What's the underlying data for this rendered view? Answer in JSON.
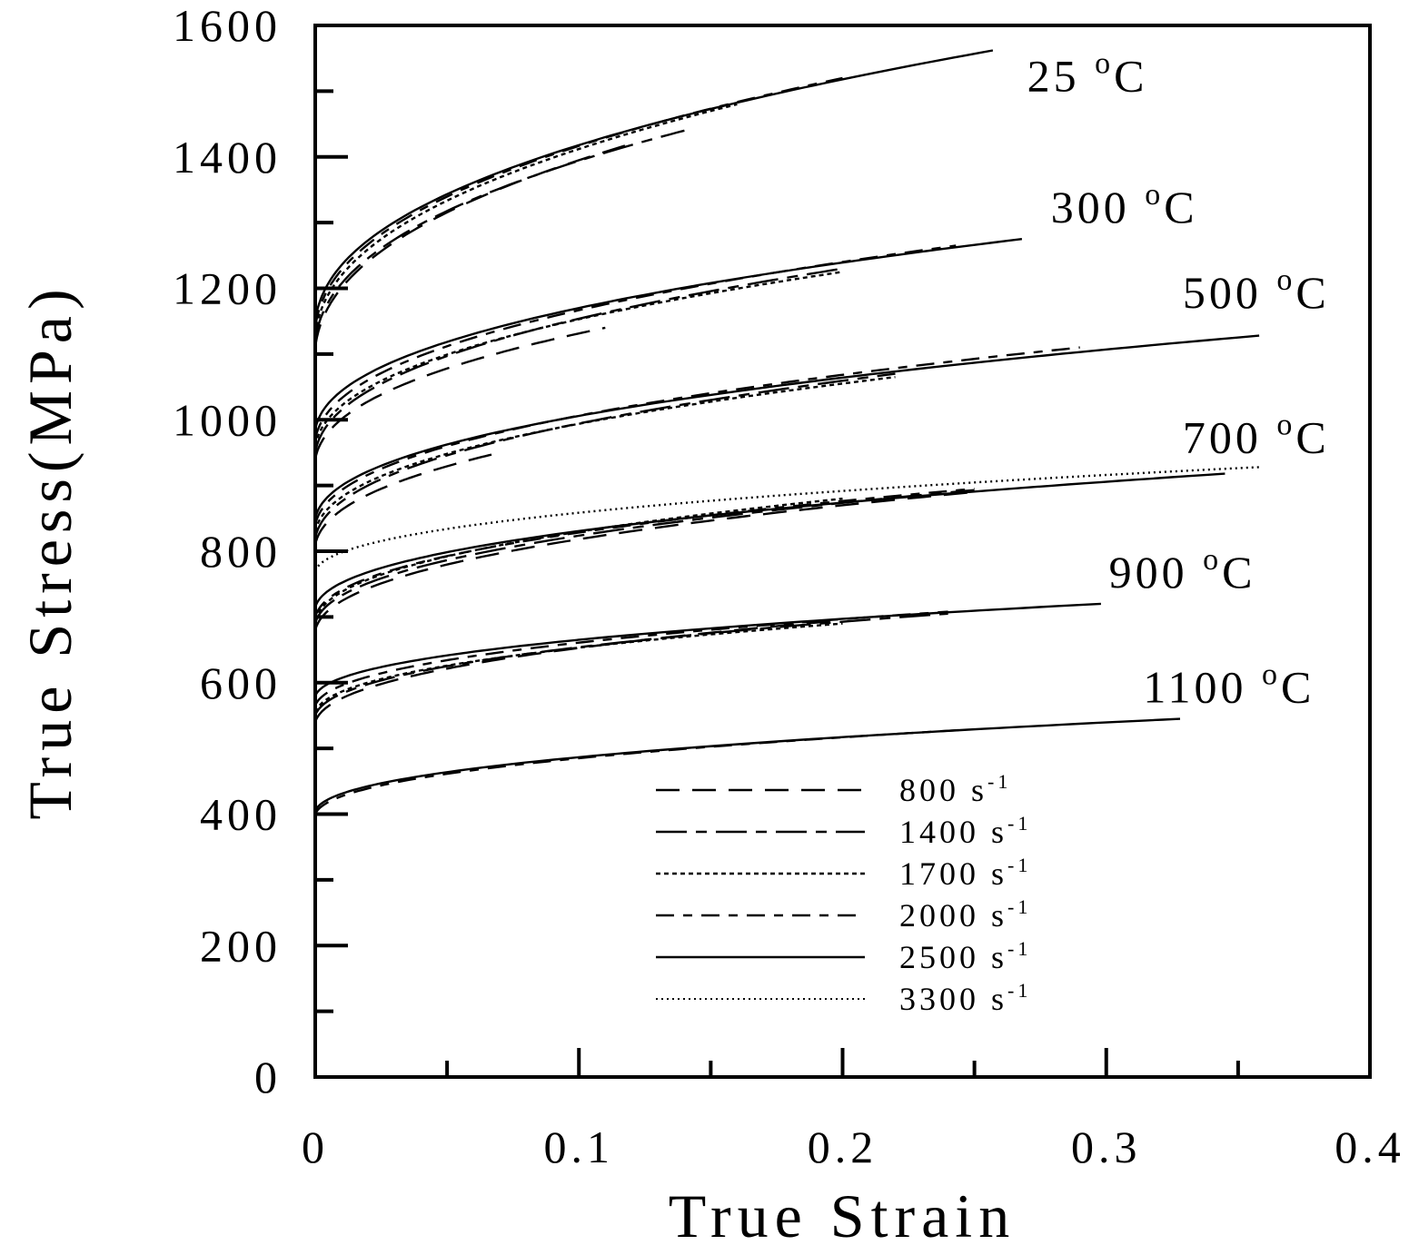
{
  "chart_data": {
    "type": "line",
    "title": "",
    "xlabel": "True Strain",
    "ylabel": "True Stress(MPa)",
    "xlim": [
      0,
      0.4
    ],
    "ylim": [
      0,
      1600
    ],
    "x_ticks_labeled": [
      "0",
      "0.1",
      "0.2",
      "0.3",
      "0.4"
    ],
    "x_tick_values": [
      0,
      0.1,
      0.2,
      0.3,
      0.4
    ],
    "x_minor_ticks": [
      0.05,
      0.15,
      0.25,
      0.35
    ],
    "y_ticks_labeled": [
      "0",
      "200",
      "400",
      "600",
      "800",
      "1000",
      "1200",
      "1400",
      "1600"
    ],
    "y_tick_values": [
      0,
      200,
      400,
      600,
      800,
      1000,
      1200,
      1400,
      1600
    ],
    "y_minor_ticks": [
      100,
      300,
      500,
      700,
      900,
      1100,
      1300,
      1500
    ],
    "grid": false,
    "legend_position": "bottom-center",
    "legend": [
      {
        "name": "800 s",
        "sup": "-1",
        "style": "long-dash"
      },
      {
        "name": "1400 s",
        "sup": "-1",
        "style": "long-dash-dot"
      },
      {
        "name": "1700 s",
        "sup": "-1",
        "style": "short-dash"
      },
      {
        "name": "2000 s",
        "sup": "-1",
        "style": "dash-dash"
      },
      {
        "name": "2500 s",
        "sup": "-1",
        "style": "solid"
      },
      {
        "name": "3300 s",
        "sup": "-1",
        "style": "dotted"
      }
    ],
    "temperatures": [
      {
        "label": "25",
        "unit": "C",
        "label_strain": 0.27,
        "label_stress": 1500,
        "series": [
          {
            "rate": "800 s-1",
            "s0": 1110,
            "end_strain": 0.12,
            "end_stress": 1420
          },
          {
            "rate": "1400 s-1",
            "s0": 1120,
            "end_strain": 0.14,
            "end_stress": 1440
          },
          {
            "rate": "1700 s-1",
            "s0": 1130,
            "end_strain": 0.16,
            "end_stress": 1480
          },
          {
            "rate": "2000 s-1",
            "s0": 1140,
            "end_strain": 0.2,
            "end_stress": 1520
          },
          {
            "rate": "2500 s-1",
            "s0": 1150,
            "end_strain": 0.257,
            "end_stress": 1562
          }
        ]
      },
      {
        "label": "300",
        "unit": "C",
        "label_strain": 0.279,
        "label_stress": 1300,
        "series": [
          {
            "rate": "800 s-1",
            "s0": 940,
            "end_strain": 0.11,
            "end_stress": 1140
          },
          {
            "rate": "1400 s-1",
            "s0": 950,
            "end_strain": 0.2,
            "end_stress": 1230
          },
          {
            "rate": "1700 s-1",
            "s0": 960,
            "end_strain": 0.2,
            "end_stress": 1225
          },
          {
            "rate": "2000 s-1",
            "s0": 970,
            "end_strain": 0.243,
            "end_stress": 1265
          },
          {
            "rate": "2500 s-1",
            "s0": 985,
            "end_strain": 0.268,
            "end_stress": 1275
          }
        ]
      },
      {
        "label": "500",
        "unit": "C",
        "label_strain": 0.329,
        "label_stress": 1170,
        "series": [
          {
            "rate": "800 s-1",
            "s0": 810,
            "end_strain": 0.07,
            "end_stress": 950
          },
          {
            "rate": "1400 s-1",
            "s0": 820,
            "end_strain": 0.22,
            "end_stress": 1070
          },
          {
            "rate": "1700 s-1",
            "s0": 830,
            "end_strain": 0.22,
            "end_stress": 1065
          },
          {
            "rate": "2000 s-1",
            "s0": 840,
            "end_strain": 0.29,
            "end_stress": 1110
          },
          {
            "rate": "2500 s-1",
            "s0": 850,
            "end_strain": 0.358,
            "end_stress": 1128
          }
        ]
      },
      {
        "label": "700",
        "unit": "C",
        "label_strain": 0.329,
        "label_stress": 950,
        "series": [
          {
            "rate": "800 s-1",
            "s0": 680,
            "end_strain": 0.25,
            "end_stress": 890
          },
          {
            "rate": "1400 s-1",
            "s0": 690,
            "end_strain": 0.25,
            "end_stress": 893
          },
          {
            "rate": "1700 s-1",
            "s0": 695,
            "end_strain": 0.2,
            "end_stress": 880
          },
          {
            "rate": "2000 s-1",
            "s0": 700,
            "end_strain": 0.25,
            "end_stress": 895
          },
          {
            "rate": "2500 s-1",
            "s0": 715,
            "end_strain": 0.345,
            "end_stress": 918
          },
          {
            "rate": "3300 s-1",
            "s0": 770,
            "end_strain": 0.358,
            "end_stress": 928
          }
        ]
      },
      {
        "label": "900",
        "unit": "C",
        "label_strain": 0.301,
        "label_stress": 745,
        "series": [
          {
            "rate": "800 s-1",
            "s0": 540,
            "end_strain": 0.2,
            "end_stress": 695
          },
          {
            "rate": "1400 s-1",
            "s0": 550,
            "end_strain": 0.24,
            "end_stress": 705
          },
          {
            "rate": "1700 s-1",
            "s0": 555,
            "end_strain": 0.2,
            "end_stress": 690
          },
          {
            "rate": "2000 s-1",
            "s0": 565,
            "end_strain": 0.24,
            "end_stress": 708
          },
          {
            "rate": "2500 s-1",
            "s0": 580,
            "end_strain": 0.298,
            "end_stress": 720
          }
        ]
      },
      {
        "label": "1100",
        "unit": "C",
        "label_strain": 0.314,
        "label_stress": 570,
        "series": [
          {
            "rate": "2000 s-1",
            "s0": 400,
            "end_strain": 0.245,
            "end_stress": 528
          },
          {
            "rate": "2500 s-1",
            "s0": 405,
            "end_strain": 0.328,
            "end_stress": 545
          }
        ]
      }
    ]
  }
}
